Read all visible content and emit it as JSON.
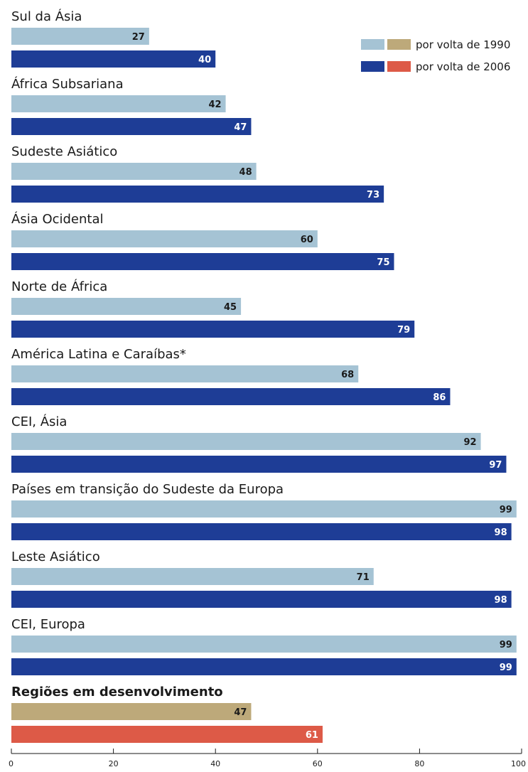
{
  "chart_data": {
    "type": "bar",
    "orientation": "horizontal",
    "categories": [
      "Sul da Ásia",
      "África Subsariana",
      "Sudeste Asiático",
      "Ásia Ocidental",
      "Norte de África",
      "América Latina e Caraíbas*",
      "CEI, Ásia",
      "Países em transição do Sudeste da Europa",
      "Leste Asiático",
      "CEI, Europa",
      "Regiões em desenvolvimento"
    ],
    "series": [
      {
        "name": "por volta de 1990",
        "values": [
          27,
          42,
          48,
          60,
          45,
          68,
          92,
          99,
          71,
          99,
          47
        ]
      },
      {
        "name": "por volta de 2006",
        "values": [
          40,
          47,
          73,
          75,
          79,
          86,
          97,
          98,
          98,
          99,
          61
        ]
      }
    ],
    "emphasized_category": "Regiões em desenvolvimento",
    "xlim": [
      0,
      100
    ],
    "xticks": [
      0,
      20,
      40,
      60,
      80,
      100
    ],
    "grid": false,
    "legend": {
      "placement": "top-right",
      "entries": [
        "por volta de 1990",
        "por volta de 2006"
      ]
    },
    "colors": {
      "series_1990": "#a5c3d4",
      "series_2006": "#1e3d96",
      "highlight_1990": "#bda97a",
      "highlight_2006": "#dd5a47",
      "label_dark": "#1a1a1a",
      "label_light": "#ffffff"
    }
  }
}
